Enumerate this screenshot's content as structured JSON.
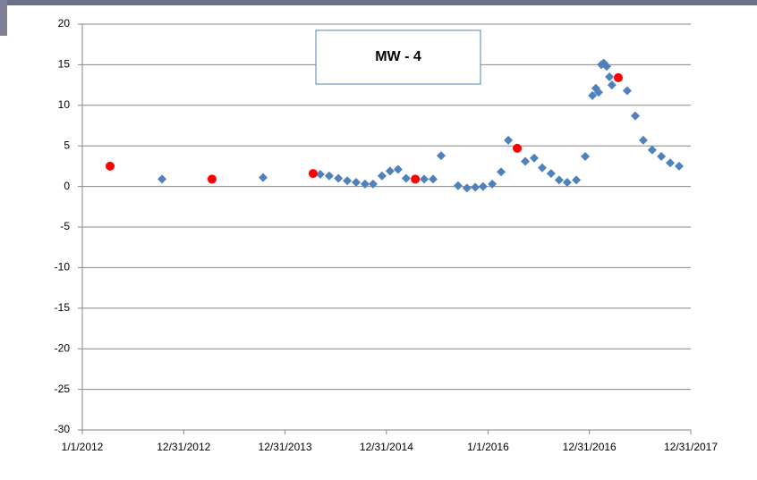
{
  "chart_data": {
    "type": "scatter",
    "title": "MW - 4",
    "xlim": [
      "2012-01-01",
      "2017-12-31"
    ],
    "xticks": [
      {
        "value": "2012-01-01",
        "label": "1/1/2012"
      },
      {
        "value": "2012-12-31",
        "label": "12/31/2012"
      },
      {
        "value": "2013-12-31",
        "label": "12/31/2013"
      },
      {
        "value": "2014-12-31",
        "label": "12/31/2014"
      },
      {
        "value": "2016-01-01",
        "label": "1/1/2016"
      },
      {
        "value": "2016-12-31",
        "label": "12/31/2016"
      },
      {
        "value": "2017-12-31",
        "label": "12/31/2017"
      }
    ],
    "ylim": [
      -30,
      20
    ],
    "yticks": [
      -30,
      -25,
      -20,
      -15,
      -10,
      -5,
      0,
      5,
      10,
      15,
      20
    ],
    "grid": true,
    "series": [
      {
        "color": "#4f81bd",
        "marker": "diamond",
        "x": [
          "2012-10-14",
          "2013-10-13",
          "2014-05-07",
          "2014-06-08",
          "2014-07-11",
          "2014-08-12",
          "2014-09-13",
          "2014-10-15",
          "2014-11-13",
          "2014-12-15",
          "2015-01-13",
          "2015-02-11",
          "2015-03-12",
          "2015-05-16",
          "2015-06-17",
          "2015-07-16",
          "2015-09-15",
          "2015-10-17",
          "2015-11-16",
          "2015-12-14",
          "2016-01-16",
          "2016-02-17",
          "2016-03-14",
          "2016-05-14",
          "2016-06-15",
          "2016-07-14",
          "2016-08-15",
          "2016-09-13",
          "2016-10-12",
          "2016-11-14",
          "2016-12-16",
          "2017-01-11",
          "2017-01-23",
          "2017-02-02",
          "2017-02-12",
          "2017-02-21",
          "2017-03-03",
          "2017-03-13",
          "2017-03-22",
          "2017-05-16",
          "2017-06-14",
          "2017-07-13",
          "2017-08-14",
          "2017-09-16",
          "2017-10-18",
          "2017-11-19"
        ],
        "values": [
          0.9,
          1.1,
          1.5,
          1.3,
          1.0,
          0.7,
          0.5,
          0.3,
          0.3,
          1.3,
          1.9,
          2.1,
          1.0,
          0.9,
          0.9,
          3.8,
          0.1,
          -0.2,
          -0.1,
          0.0,
          0.3,
          1.8,
          5.7,
          3.1,
          3.5,
          2.3,
          1.6,
          0.8,
          0.5,
          0.8,
          3.7,
          11.2,
          12.1,
          11.6,
          15.0,
          15.2,
          14.8,
          13.5,
          12.5,
          11.8,
          8.7,
          5.7,
          4.5,
          3.7,
          2.9,
          2.5
        ]
      },
      {
        "color": "#ff0000",
        "marker": "circle",
        "x": [
          "2012-04-10",
          "2013-04-12",
          "2014-04-11",
          "2015-04-14",
          "2016-04-15",
          "2017-04-14"
        ],
        "values": [
          2.5,
          0.9,
          1.6,
          0.9,
          4.7,
          13.4
        ]
      }
    ]
  }
}
